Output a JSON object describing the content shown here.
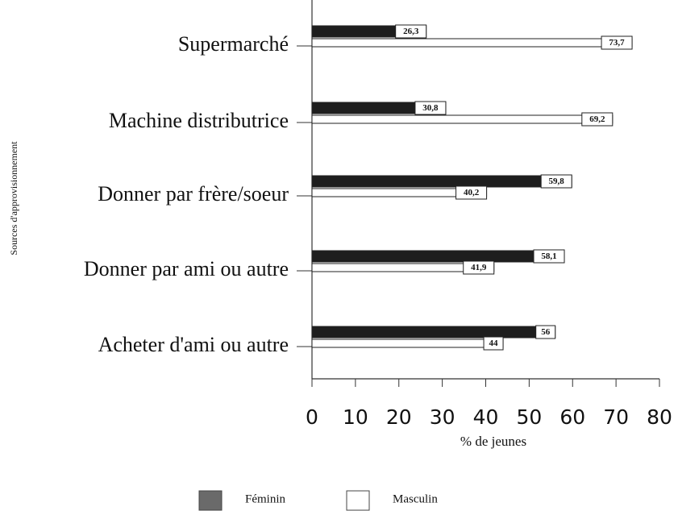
{
  "chart_data": {
    "type": "bar",
    "orientation": "horizontal",
    "categories": [
      "Supermarché",
      "Machine distributrice",
      "Donner par frère/soeur",
      "Donner par ami ou autre",
      "Acheter d'ami ou autre"
    ],
    "series": [
      {
        "name": "Féminin",
        "color": "#1e1e1e",
        "values": [
          26.3,
          30.8,
          59.8,
          58.1,
          56
        ],
        "value_labels": [
          "26,3",
          "30,8",
          "59,8",
          "58,1",
          "56"
        ]
      },
      {
        "name": "Masculin",
        "color": "#ffffff",
        "values": [
          73.7,
          69.2,
          40.2,
          41.9,
          44
        ],
        "value_labels": [
          "73,7",
          "69,2",
          "40,2",
          "41,9",
          "44"
        ]
      }
    ],
    "xlabel": "% de jeunes",
    "ylabel": "Sources d'approvisionnement",
    "xlim": [
      0,
      80
    ],
    "xticks": [
      0,
      10,
      20,
      30,
      40,
      50,
      60,
      70,
      80
    ],
    "grid": false,
    "legend": "bottom"
  }
}
